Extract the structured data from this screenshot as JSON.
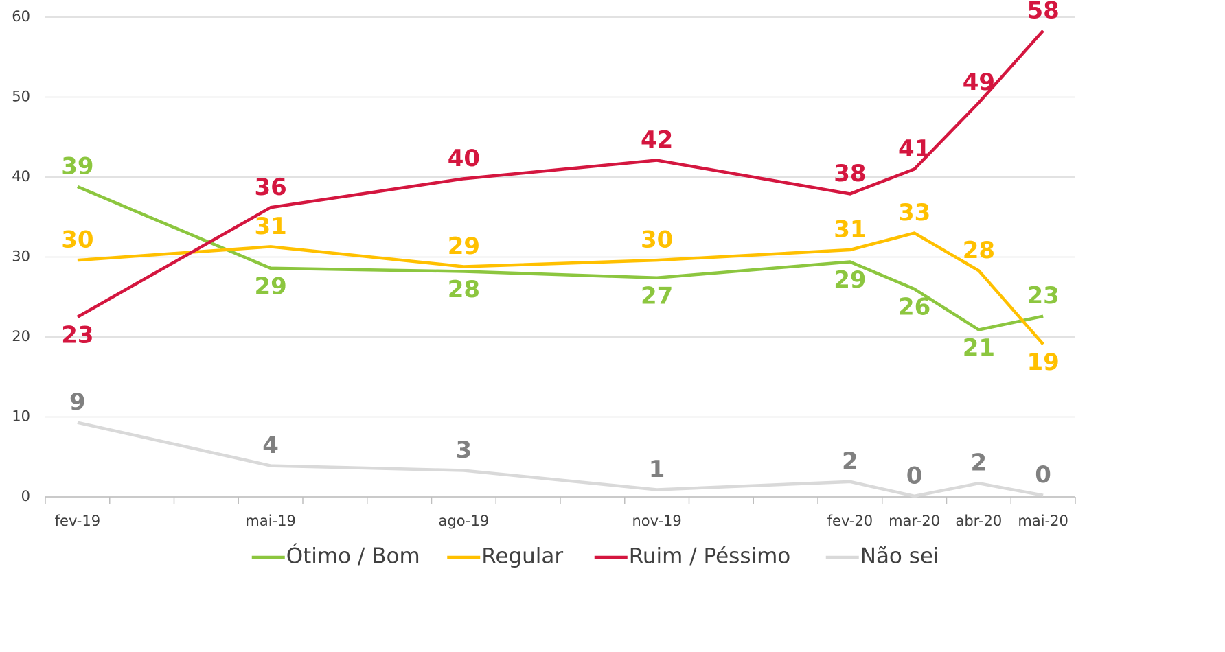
{
  "chart_data": {
    "type": "line",
    "x": [
      "fev-19",
      "mai-19",
      "ago-19",
      "nov-19",
      "fev-20",
      "mar-20",
      "abr-20",
      "mai-20"
    ],
    "ylim": [
      0,
      60
    ],
    "yticks": [
      0,
      10,
      20,
      30,
      40,
      50,
      60
    ],
    "grid": true,
    "legend": "bottom",
    "series": [
      {
        "name": "Ótimo / Bom",
        "color": "#8cc63f",
        "label_color": "#8cc63f",
        "values": [
          38.8,
          28.6,
          28.2,
          27.4,
          29.4,
          26.0,
          20.9,
          22.6
        ],
        "value_labels": [
          "39",
          "29",
          "28",
          "27",
          "29",
          "26",
          "21",
          "23"
        ]
      },
      {
        "name": "Regular",
        "color": "#ffc000",
        "label_color": "#ffc000",
        "values": [
          29.6,
          31.3,
          28.8,
          29.6,
          30.9,
          33.0,
          28.3,
          19.1
        ],
        "value_labels": [
          "30",
          "31",
          "29",
          "30",
          "31",
          "33",
          "28",
          "19"
        ]
      },
      {
        "name": "Ruim / Péssimo",
        "color": "#d4163f",
        "label_color": "#d4163f",
        "values": [
          22.5,
          36.2,
          39.8,
          42.1,
          37.9,
          41.0,
          49.3,
          58.3
        ],
        "value_labels": [
          "23",
          "36",
          "40",
          "42",
          "38",
          "41",
          "49",
          "58"
        ]
      },
      {
        "name": "Não sei",
        "color": "#d9d9d9",
        "label_color": "#808080",
        "values": [
          9.3,
          3.9,
          3.3,
          0.9,
          1.9,
          0.1,
          1.7,
          0.2
        ],
        "value_labels": [
          "9",
          "4",
          "3",
          "1",
          "2",
          "0",
          "2",
          "0"
        ]
      }
    ]
  }
}
